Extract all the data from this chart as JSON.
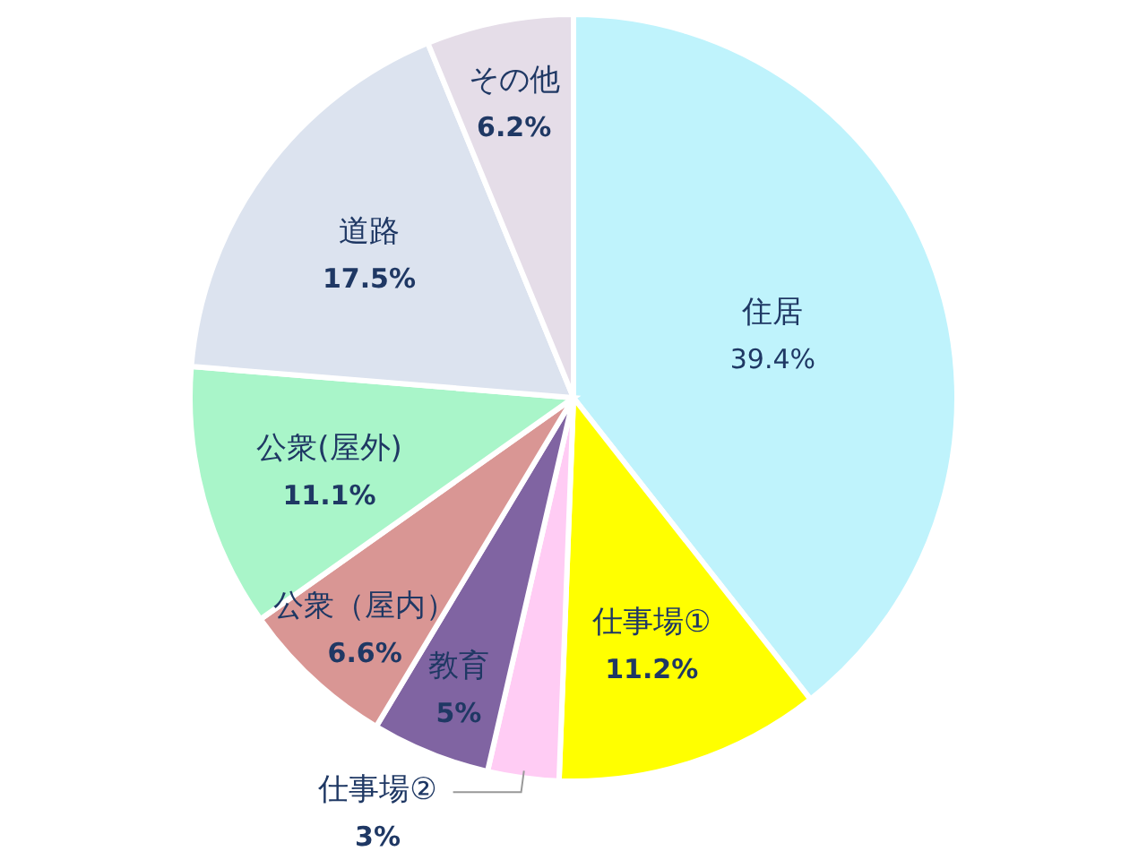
{
  "chart_data": {
    "type": "pie",
    "categories": [
      "住居",
      "仕事場①",
      "仕事場②",
      "教育",
      "公衆（屋内）",
      "公衆(屋外)",
      "道路",
      "その他"
    ],
    "values": [
      39.4,
      11.2,
      3,
      5,
      6.6,
      11.1,
      17.5,
      6.2
    ],
    "value_labels": [
      "39.4%",
      "11.2%",
      "3%",
      "5%",
      "6.6%",
      "11.1%",
      "17.5%",
      "6.2%"
    ],
    "colors": [
      "#bff3fc",
      "#ffff00",
      "#ffccf4",
      "#8064a2",
      "#d99694",
      "#a9f5c9",
      "#dce3ef",
      "#e5dde8"
    ]
  }
}
